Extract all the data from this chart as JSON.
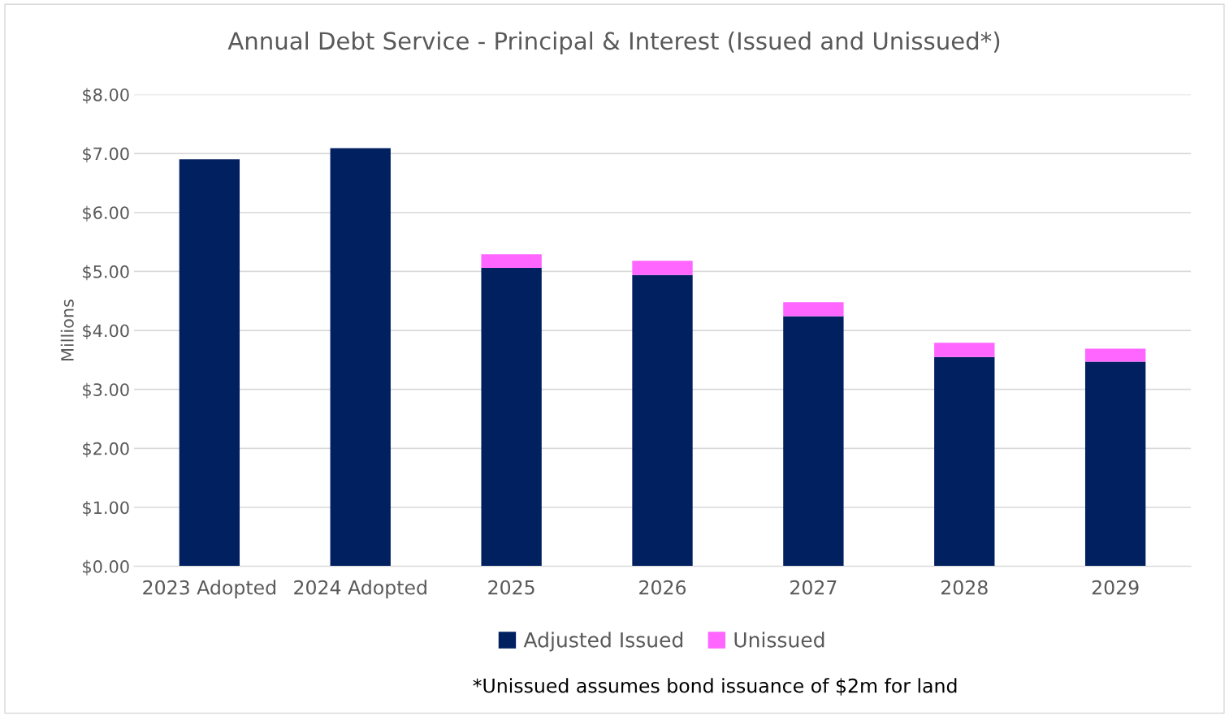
{
  "chart_data": {
    "type": "bar",
    "title": "Annual Debt Service - Principal & Interest (Issued and Unissued*)",
    "ylabel": "Millions",
    "categories": [
      "2023 Adopted",
      "2024 Adopted",
      "2025",
      "2026",
      "2027",
      "2028",
      "2029"
    ],
    "series": [
      {
        "name": "Adjusted Issued",
        "color": "#002060",
        "values": [
          6.9,
          7.09,
          5.06,
          4.94,
          4.24,
          3.55,
          3.47
        ]
      },
      {
        "name": "Unissued",
        "color": "#ff66ff",
        "values": [
          null,
          null,
          0.23,
          0.24,
          0.24,
          0.24,
          0.22
        ]
      }
    ],
    "stacked": true,
    "ylim": [
      0,
      8
    ],
    "yticks": [
      {
        "value": 0,
        "label": "$0.00"
      },
      {
        "value": 1,
        "label": "$1.00"
      },
      {
        "value": 2,
        "label": "$2.00"
      },
      {
        "value": 3,
        "label": "$3.00"
      },
      {
        "value": 4,
        "label": "$4.00"
      },
      {
        "value": 5,
        "label": "$5.00"
      },
      {
        "value": 6,
        "label": "$6.00"
      },
      {
        "value": 7,
        "label": "$7.00"
      },
      {
        "value": 8,
        "label": "$8.00"
      }
    ],
    "grid": "y",
    "legend": "bottom",
    "annotations": [
      "*Unissued assumes bond issuance of $2m for land"
    ]
  }
}
